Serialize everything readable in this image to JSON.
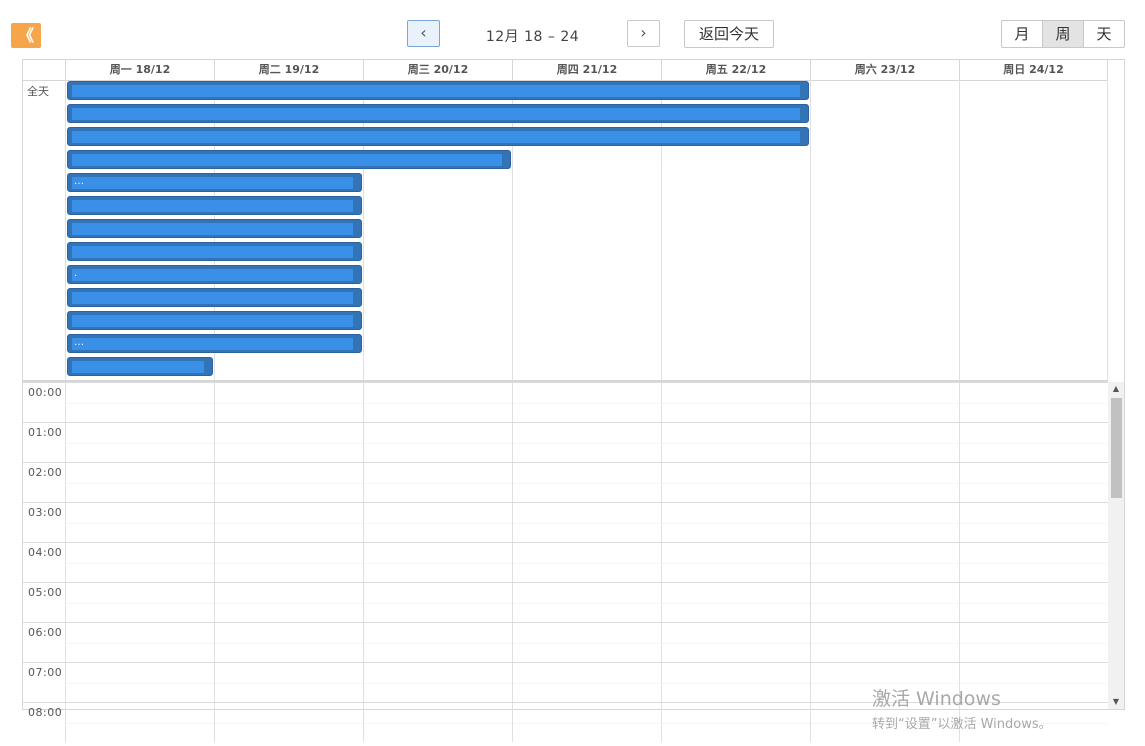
{
  "toolbar": {
    "collapse_icon": "《",
    "prev_icon": "‹",
    "next_icon": "›",
    "range_label": "12月 18 – 24",
    "today_label": "返回今天",
    "views": [
      "月",
      "周",
      "天"
    ],
    "active_view": "周"
  },
  "calendar": {
    "days": [
      "周一 18/12",
      "周二 19/12",
      "周三 20/12",
      "周四 21/12",
      "周五 22/12",
      "周六 23/12",
      "周日 24/12"
    ],
    "allday_label": "全天",
    "hours": [
      "00:00",
      "01:00",
      "02:00",
      "03:00",
      "04:00",
      "05:00",
      "06:00",
      "07:00",
      "08:00"
    ],
    "events": [
      {
        "row": 0,
        "start_day": 0,
        "span_days": 5,
        "text": ""
      },
      {
        "row": 1,
        "start_day": 0,
        "span_days": 5,
        "text": ""
      },
      {
        "row": 2,
        "start_day": 0,
        "span_days": 5,
        "text": ""
      },
      {
        "row": 3,
        "start_day": 0,
        "span_days": 3,
        "text": ""
      },
      {
        "row": 4,
        "start_day": 0,
        "span_days": 2,
        "text": "…"
      },
      {
        "row": 5,
        "start_day": 0,
        "span_days": 2,
        "text": ""
      },
      {
        "row": 6,
        "start_day": 0,
        "span_days": 2,
        "text": ""
      },
      {
        "row": 7,
        "start_day": 0,
        "span_days": 2,
        "text": ""
      },
      {
        "row": 8,
        "start_day": 0,
        "span_days": 2,
        "text": "."
      },
      {
        "row": 9,
        "start_day": 0,
        "span_days": 2,
        "text": ""
      },
      {
        "row": 10,
        "start_day": 0,
        "span_days": 2,
        "text": ""
      },
      {
        "row": 11,
        "start_day": 0,
        "span_days": 2,
        "text": "…"
      },
      {
        "row": 12,
        "start_day": 0,
        "span_days": 1,
        "text": ""
      }
    ]
  },
  "watermark": {
    "line1": "激活 Windows",
    "line2": "转到“设置”以激活 Windows。"
  },
  "colors": {
    "event_bg": "#3274b5",
    "event_highlight": "#3a8fe6",
    "collapse_btn": "#f5a54a"
  }
}
